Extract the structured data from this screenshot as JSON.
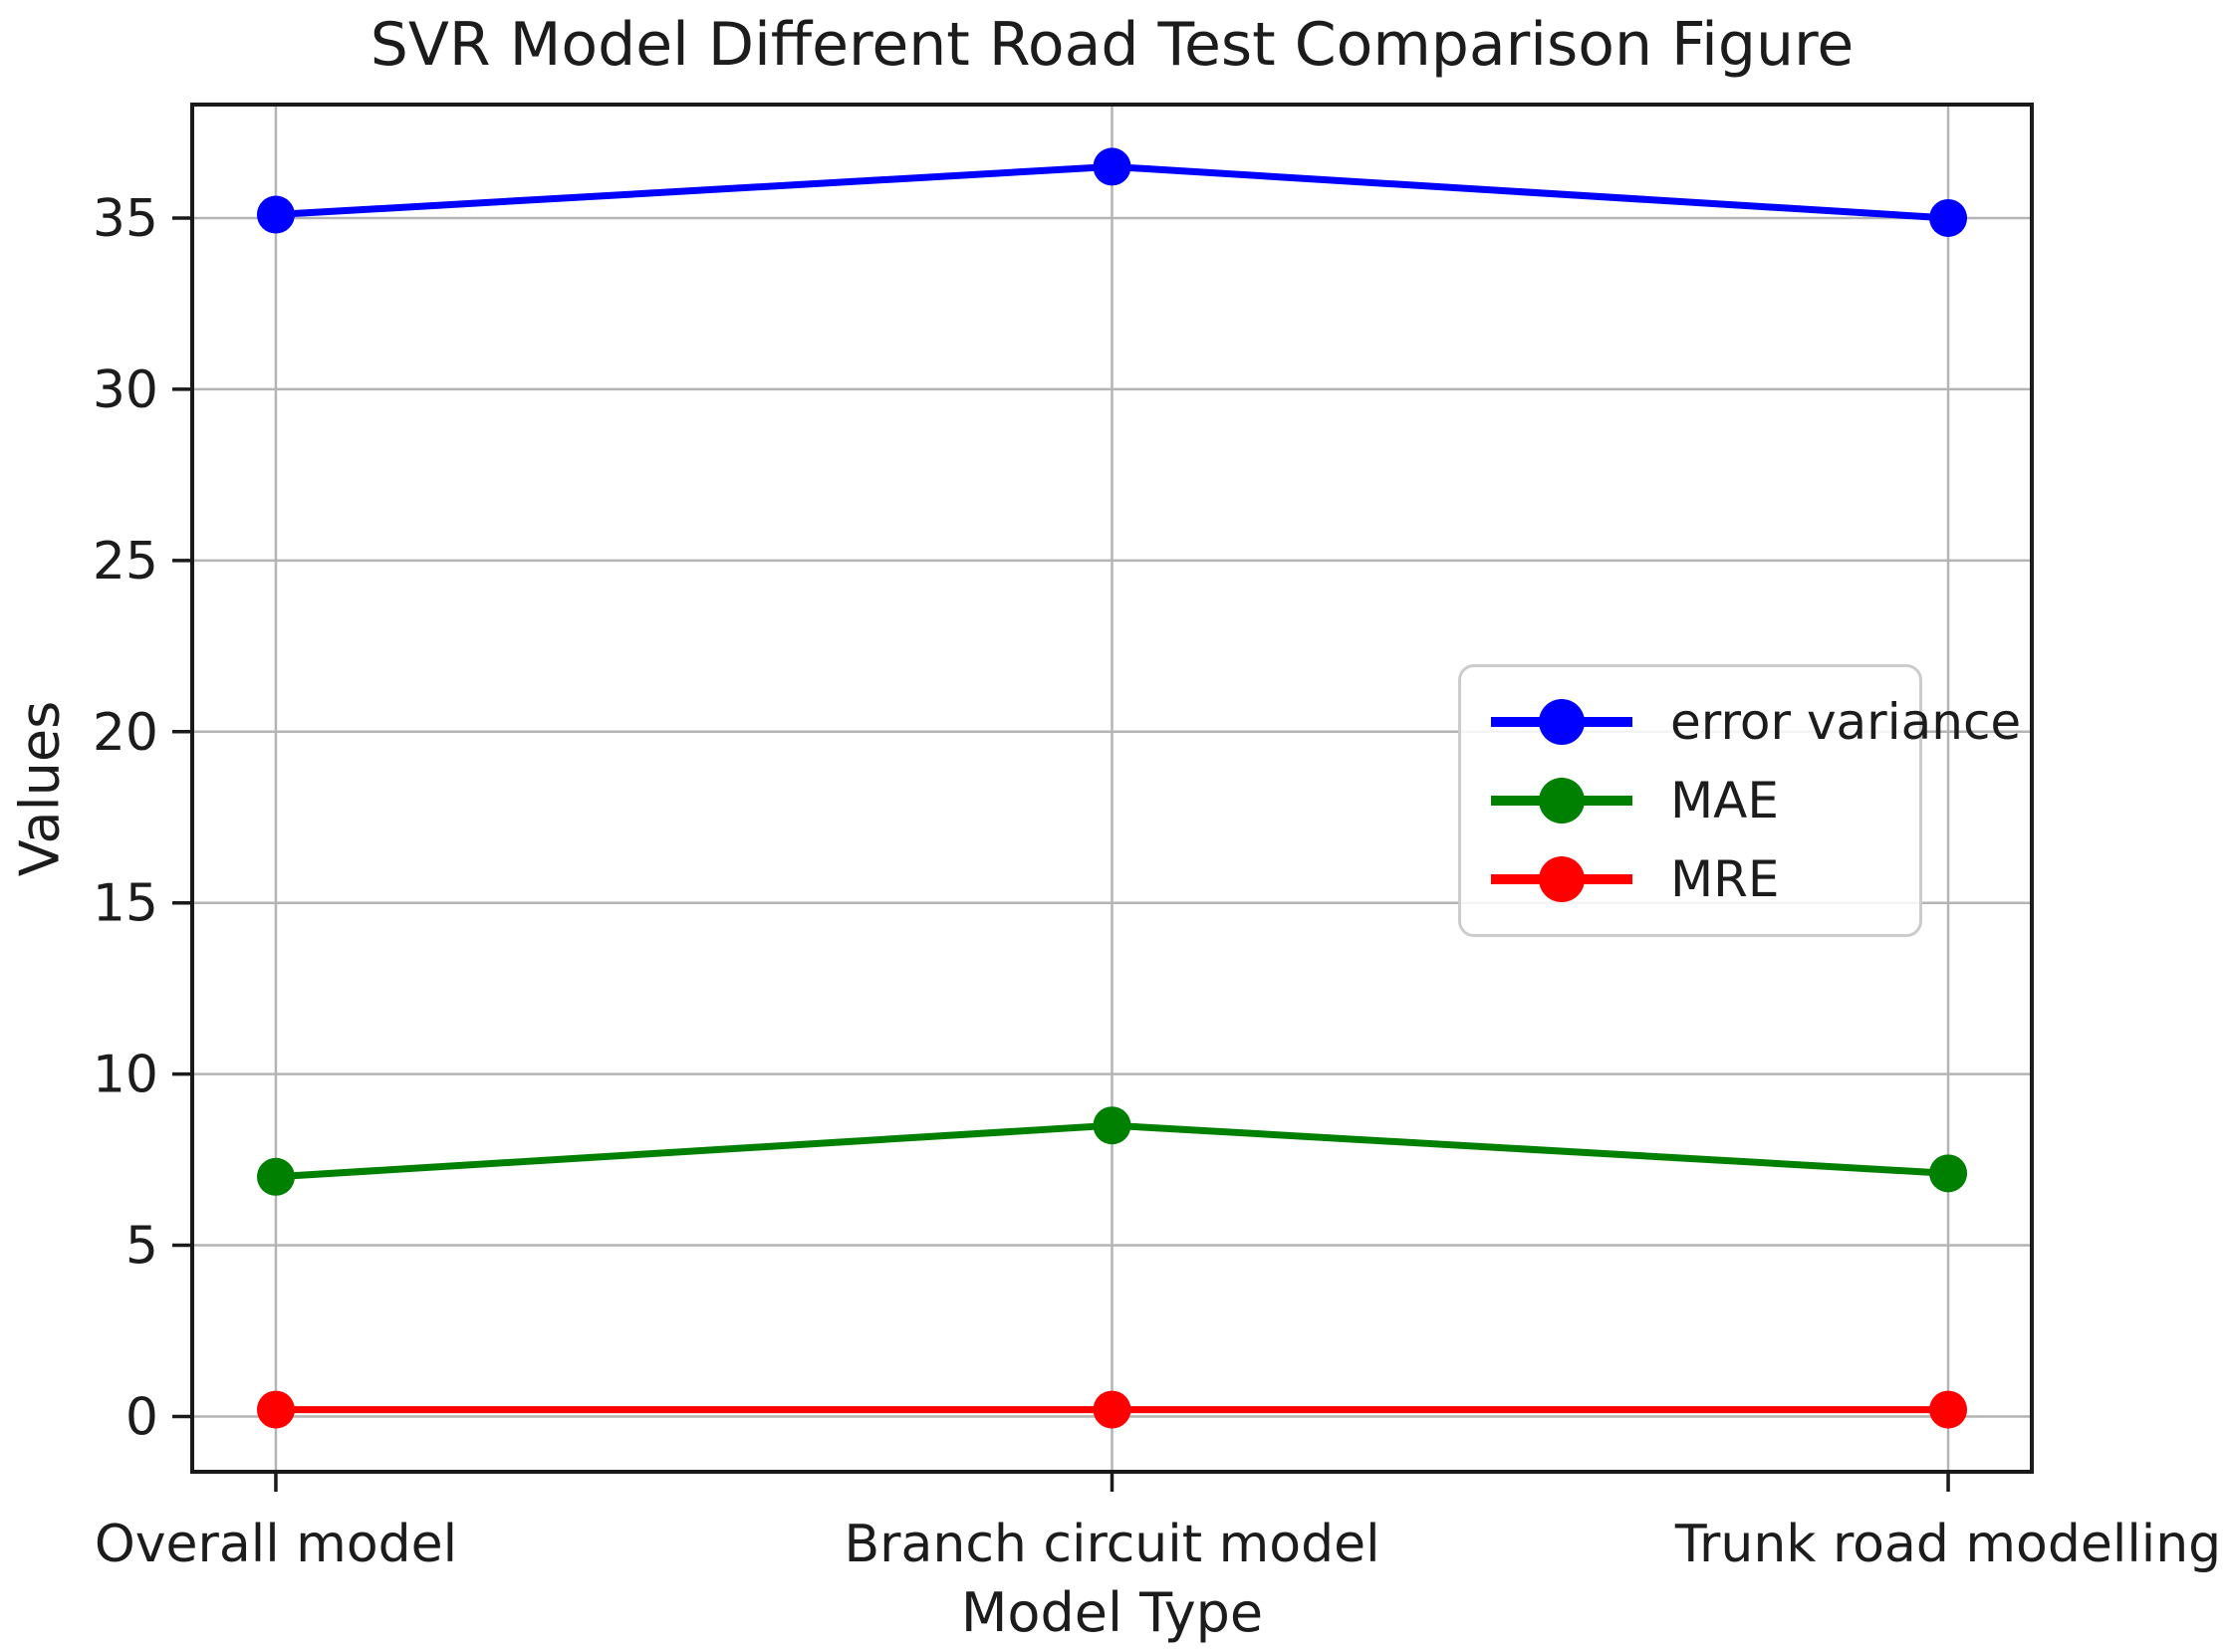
{
  "chart_data": {
    "type": "line",
    "title": "SVR Model Different Road Test Comparison Figure",
    "xlabel": "Model Type",
    "ylabel": "Values",
    "categories": [
      "Overall model",
      "Branch circuit model",
      "Trunk road modelling"
    ],
    "series": [
      {
        "name": "error variance",
        "color": "#0000ff",
        "values": [
          35.1,
          36.5,
          35.0
        ]
      },
      {
        "name": "MAE",
        "color": "#008000",
        "values": [
          7.0,
          8.5,
          7.1
        ]
      },
      {
        "name": "MRE",
        "color": "#ff0000",
        "values": [
          0.2,
          0.2,
          0.2
        ]
      }
    ],
    "yticks": [
      0,
      5,
      10,
      15,
      20,
      25,
      30,
      35
    ],
    "ylim": [
      -1.615,
      38.315
    ],
    "xlim": [
      -0.1,
      2.1
    ],
    "grid": true,
    "legend_position": "center-right",
    "grid_color": "#b4b4b4",
    "axis_color": "#1a1a1a",
    "text_color": "#1c1c1c",
    "background_color": "#ffffff"
  }
}
